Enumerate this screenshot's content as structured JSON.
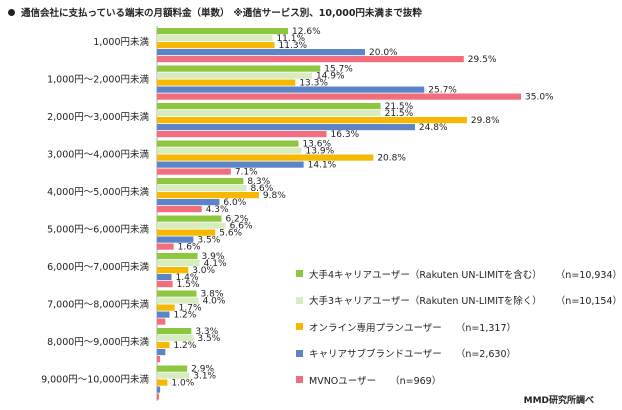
{
  "chart_data": {
    "type": "bar",
    "orientation": "horizontal",
    "title": "通信会社に支払っている端末の月額料金（単数）",
    "subtitle": "※通信サービス別、10,000円未満まで抜粋",
    "categories": [
      "1,000円未満",
      "1,000円～2,000円未満",
      "2,000円～3,000円未満",
      "3,000円～4,000円未満",
      "4,000円～5,000円未満",
      "5,000円～6,000円未満",
      "6,000円～7,000円未満",
      "7,000円～8,000円未満",
      "8,000円～9,000円未満",
      "9,000円～10,000円未満"
    ],
    "unit": "%",
    "series": [
      {
        "name": "大手4キャリアユーザー（Rakuten UN-LIMITを含む）",
        "n": "（n=10,934）",
        "color": "#8dc63f",
        "values": [
          12.6,
          15.7,
          21.5,
          13.6,
          8.3,
          6.2,
          3.9,
          3.8,
          3.3,
          2.9
        ]
      },
      {
        "name": "大手3キャリアユーザー（Rakuten UN-LIMITを除く）",
        "n": "（n=10,154）",
        "color": "#d9ecbf",
        "values": [
          11.1,
          14.9,
          21.5,
          13.9,
          8.6,
          6.6,
          4.1,
          4.0,
          3.5,
          3.1
        ]
      },
      {
        "name": "オンライン専用プランユーザー",
        "n": "（n=1,317）",
        "color": "#f6b800",
        "values": [
          11.3,
          13.3,
          29.8,
          20.8,
          9.8,
          5.6,
          3.0,
          1.7,
          1.2,
          1.0
        ]
      },
      {
        "name": "キャリアサブブランドユーザー",
        "n": "（n=2,630）",
        "color": "#5b85c6",
        "values": [
          20.0,
          25.7,
          24.8,
          14.1,
          6.0,
          3.5,
          1.4,
          1.2,
          0.8,
          0.3
        ]
      },
      {
        "name": "MVNOユーザー",
        "n": "（n=969）",
        "color": "#f26d7d",
        "values": [
          29.5,
          35.0,
          16.3,
          7.1,
          4.3,
          1.6,
          1.5,
          0.8,
          0.3,
          0.2
        ]
      }
    ],
    "data_labels": [
      [
        "12.6%",
        "11.1%",
        "11.3%",
        "20.0%",
        "29.5%"
      ],
      [
        "15.7%",
        "14.9%",
        "13.3%",
        "25.7%",
        "35.0%"
      ],
      [
        "21.5%",
        "21.5%",
        "29.8%",
        "24.8%",
        "16.3%"
      ],
      [
        "13.6%",
        "13.9%",
        "20.8%",
        "14.1%",
        "7.1%"
      ],
      [
        "8.3%",
        "8.6%",
        "9.8%",
        "6.0%",
        "4.3%"
      ],
      [
        "6.2%",
        "6.6%",
        "5.6%",
        "3.5%",
        "1.6%"
      ],
      [
        "3.9%",
        "4.1%",
        "3.0%",
        "1.4%",
        "1.5%"
      ],
      [
        "3.8%",
        "4.0%",
        "1.7%",
        "1.2%",
        ""
      ],
      [
        "3.3%",
        "3.5%",
        "1.2%",
        "",
        ""
      ],
      [
        "2.9%",
        "3.1%",
        "1.0%",
        "",
        ""
      ]
    ],
    "legend_position": "bottom-right",
    "grid": false
  },
  "source_note": "MMD研究所調べ"
}
